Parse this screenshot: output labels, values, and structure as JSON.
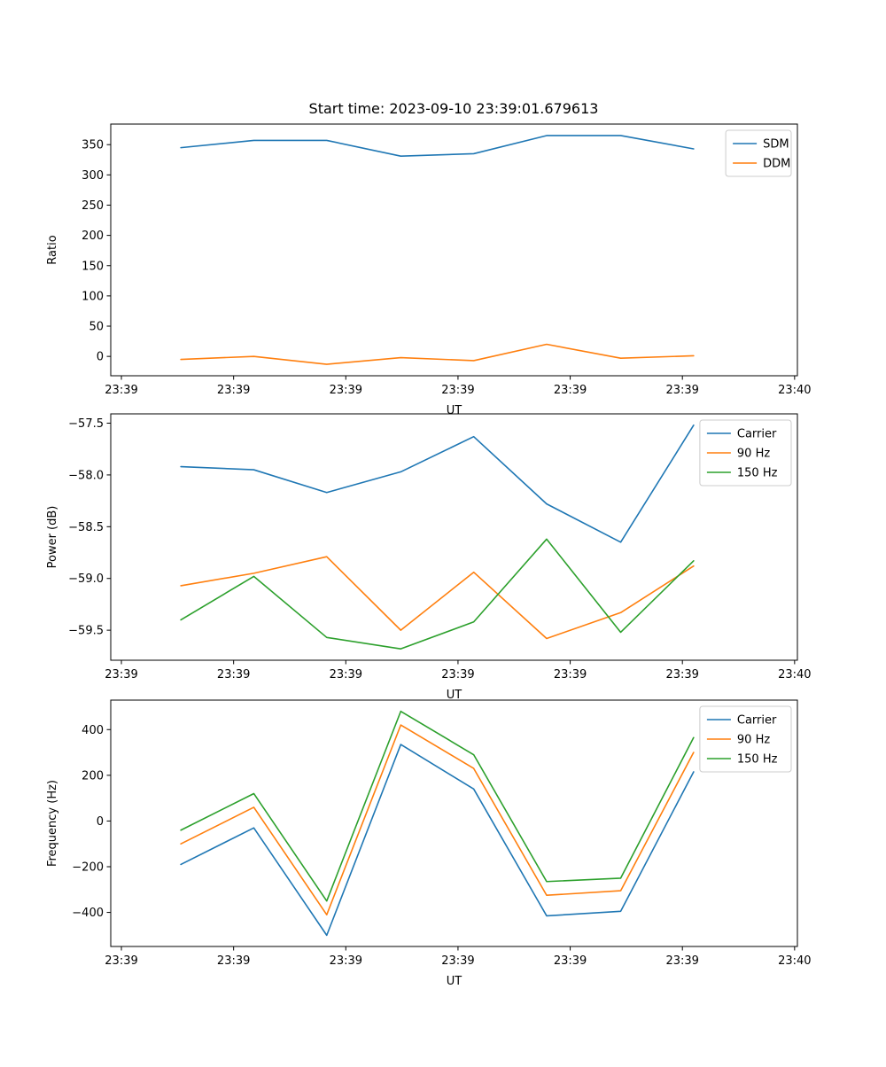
{
  "figure": {
    "title": "Start time: 2023-09-10 23:39:01.679613",
    "background": "#ffffff"
  },
  "colors": {
    "blue": "#1f77b4",
    "orange": "#ff7f0e",
    "green": "#2ca02c"
  },
  "chart_data": [
    {
      "type": "line",
      "title": "Start time: 2023-09-10 23:39:01.679613",
      "xlabel": "UT",
      "ylabel": "Ratio",
      "grid": false,
      "legend_position": "upper right",
      "x_seconds_after_2339": [
        5.3,
        11.8,
        18.3,
        24.9,
        31.4,
        37.9,
        44.5,
        51.0
      ],
      "xlim": [
        -0.95,
        60.25
      ],
      "xticks": {
        "values": [
          0,
          10,
          20,
          30,
          40,
          50,
          60
        ],
        "labels": [
          "23:39",
          "23:39",
          "23:39",
          "23:39",
          "23:39",
          "23:39",
          "23:40"
        ]
      },
      "ylim": [
        -32,
        384
      ],
      "yticks": {
        "values": [
          0,
          50,
          100,
          150,
          200,
          250,
          300,
          350
        ],
        "labels": [
          "0",
          "50",
          "100",
          "150",
          "200",
          "250",
          "300",
          "350"
        ]
      },
      "series": [
        {
          "name": "SDM",
          "color": "#1f77b4",
          "values": [
            345,
            357,
            357,
            331,
            335,
            365,
            365,
            343
          ]
        },
        {
          "name": "DDM",
          "color": "#ff7f0e",
          "values": [
            -5,
            0,
            -13,
            -2,
            -7,
            20,
            -3,
            1
          ]
        }
      ]
    },
    {
      "type": "line",
      "title": "",
      "xlabel": "UT",
      "ylabel": "Power (dB)",
      "grid": false,
      "legend_position": "upper right",
      "x_seconds_after_2339": [
        5.3,
        11.8,
        18.3,
        24.9,
        31.4,
        37.9,
        44.5,
        51.0
      ],
      "xlim": [
        -0.95,
        60.25
      ],
      "xticks": {
        "values": [
          0,
          10,
          20,
          30,
          40,
          50,
          60
        ],
        "labels": [
          "23:39",
          "23:39",
          "23:39",
          "23:39",
          "23:39",
          "23:39",
          "23:40"
        ]
      },
      "ylim": [
        -59.79,
        -57.41
      ],
      "yticks": {
        "values": [
          -59.5,
          -59.0,
          -58.5,
          -58.0,
          -57.5
        ],
        "labels": [
          "−59.5",
          "−59.0",
          "−58.5",
          "−58.0",
          "−57.5"
        ]
      },
      "series": [
        {
          "name": "Carrier",
          "color": "#1f77b4",
          "values": [
            -57.92,
            -57.95,
            -58.17,
            -57.97,
            -57.63,
            -58.28,
            -58.65,
            -57.52
          ]
        },
        {
          "name": "90 Hz",
          "color": "#ff7f0e",
          "values": [
            -59.07,
            -58.95,
            -58.79,
            -59.5,
            -58.94,
            -59.58,
            -59.33,
            -58.88
          ]
        },
        {
          "name": "150 Hz",
          "color": "#2ca02c",
          "values": [
            -59.4,
            -58.98,
            -59.57,
            -59.68,
            -59.42,
            -58.62,
            -59.52,
            -58.83
          ]
        }
      ]
    },
    {
      "type": "line",
      "title": "",
      "xlabel": "UT",
      "ylabel": "Frequency (Hz)",
      "grid": false,
      "legend_position": "upper right",
      "x_seconds_after_2339": [
        5.3,
        11.8,
        18.3,
        24.9,
        31.4,
        37.9,
        44.5,
        51.0
      ],
      "xlim": [
        -0.95,
        60.25
      ],
      "xticks": {
        "values": [
          0,
          10,
          20,
          30,
          40,
          50,
          60
        ],
        "labels": [
          "23:39",
          "23:39",
          "23:39",
          "23:39",
          "23:39",
          "23:39",
          "23:40"
        ]
      },
      "ylim": [
        -549,
        529
      ],
      "yticks": {
        "values": [
          -400,
          -200,
          0,
          200,
          400
        ],
        "labels": [
          "−400",
          "−200",
          "0",
          "200",
          "400"
        ]
      },
      "series": [
        {
          "name": "Carrier",
          "color": "#1f77b4",
          "values": [
            -190,
            -30,
            -500,
            335,
            140,
            -415,
            -395,
            215
          ]
        },
        {
          "name": "90 Hz",
          "color": "#ff7f0e",
          "values": [
            -100,
            60,
            -410,
            420,
            230,
            -325,
            -305,
            300
          ]
        },
        {
          "name": "150 Hz",
          "color": "#2ca02c",
          "values": [
            -40,
            120,
            -350,
            480,
            290,
            -265,
            -250,
            365
          ]
        }
      ]
    }
  ]
}
